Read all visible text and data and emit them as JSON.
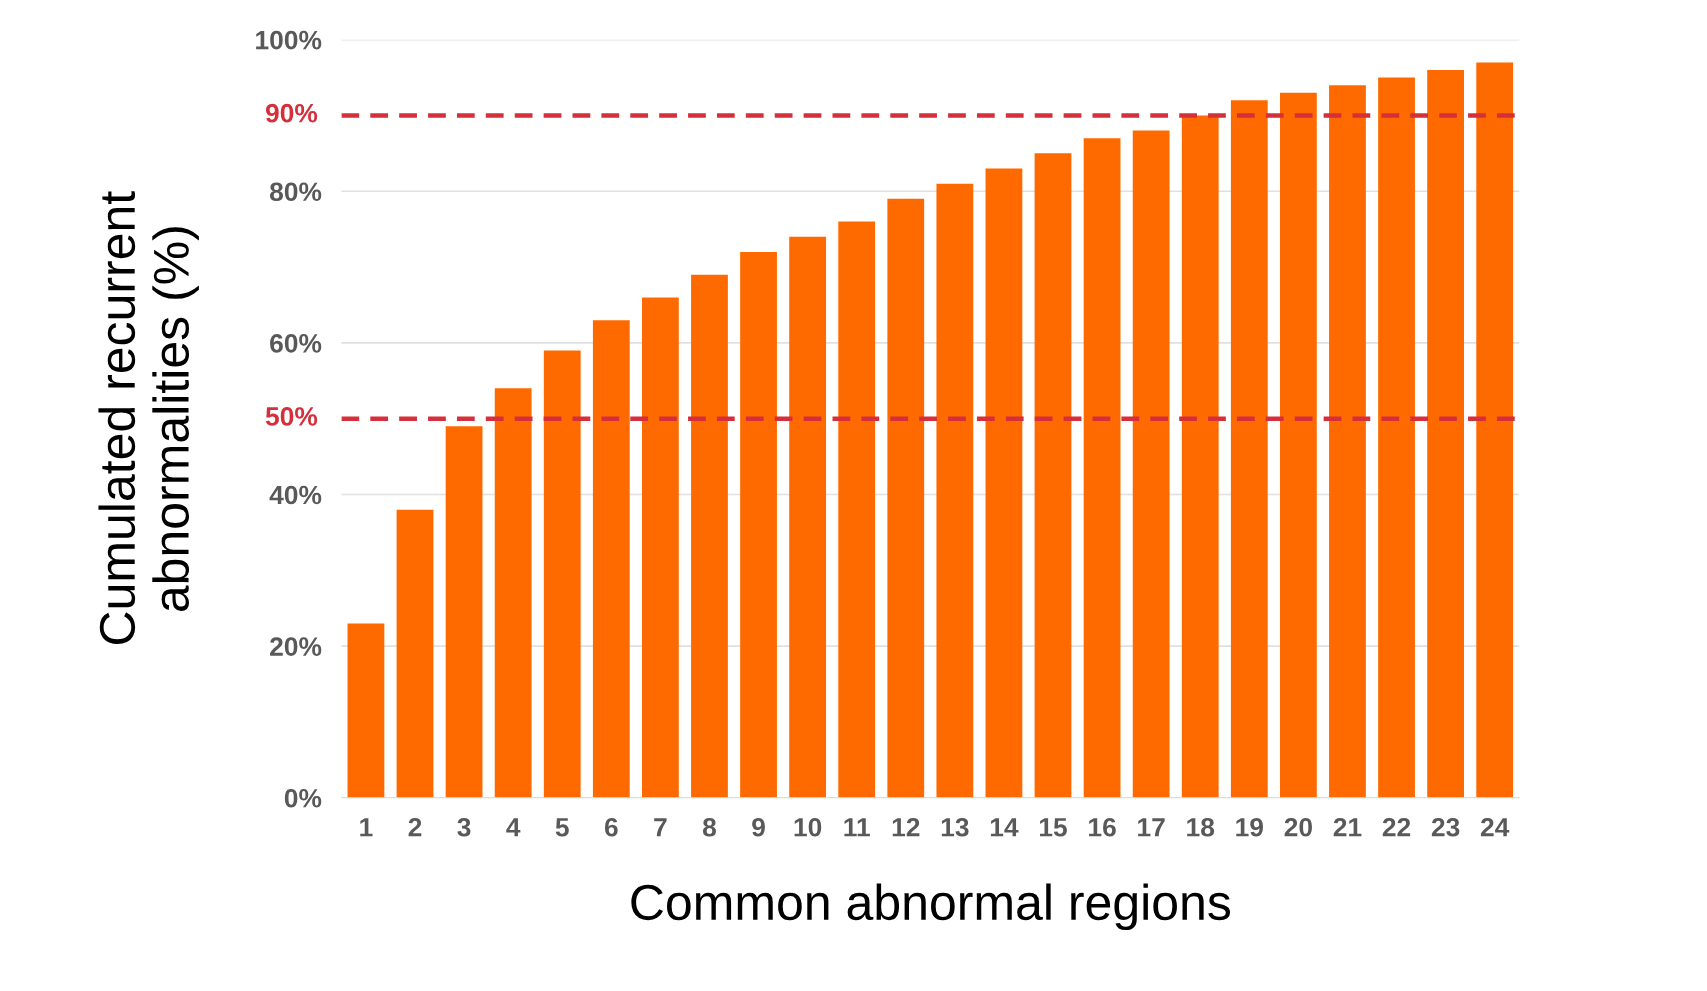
{
  "chart_data": {
    "type": "bar",
    "xlabel": "Common abnormal regions",
    "ylabel": "Cumulated recurrent\nabnormalities (%)",
    "categories": [
      "1",
      "2",
      "3",
      "4",
      "5",
      "6",
      "7",
      "8",
      "9",
      "10",
      "11",
      "12",
      "13",
      "14",
      "15",
      "16",
      "17",
      "18",
      "19",
      "20",
      "21",
      "22",
      "23",
      "24"
    ],
    "values": [
      23,
      38,
      49,
      54,
      59,
      63,
      66,
      69,
      72,
      74,
      76,
      79,
      81,
      83,
      85,
      87,
      88,
      90,
      92,
      93,
      94,
      95,
      96,
      97
    ],
    "color": "#ff6a00",
    "ylim": [
      0,
      100
    ],
    "yticks": [
      {
        "value": 0,
        "label": "0%"
      },
      {
        "value": 20,
        "label": "20%"
      },
      {
        "value": 40,
        "label": "40%"
      },
      {
        "value": 60,
        "label": "60%"
      },
      {
        "value": 80,
        "label": "80%"
      },
      {
        "value": 100,
        "label": "100%"
      }
    ],
    "ref_lines": [
      {
        "axis": "y",
        "value": 90,
        "label": "90%",
        "color": "#d62f3c",
        "line_style": "dashed"
      },
      {
        "axis": "y",
        "value": 50,
        "label": "50%",
        "color": "#d62f3c",
        "line_style": "dashed"
      }
    ],
    "grid": "y"
  }
}
